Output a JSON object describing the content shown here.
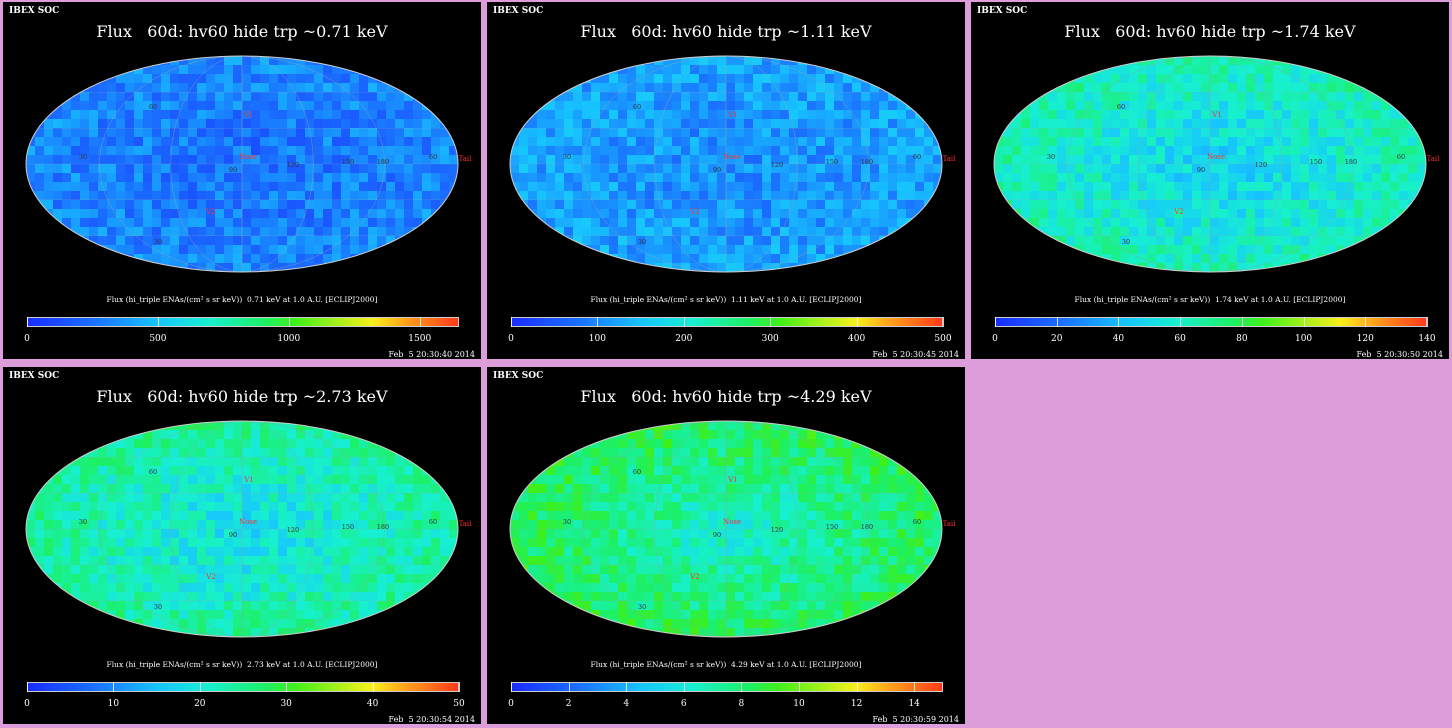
{
  "source_label": "IBEX SOC",
  "panels": [
    {
      "title": "Flux   60d: hv60 hide trp ~0.71 keV",
      "cbar_label": "Flux (hi_triple ENAs/(cm² s sr keV))  0.71 keV at 1.0 A.U. [ECLIPJ2000]",
      "ticks": [
        "0",
        "500",
        "1000",
        "1500"
      ],
      "tick_values": [
        0,
        500,
        1000,
        1500
      ],
      "max": 1650,
      "timestamp": "Feb  5 20:30:40 2014",
      "level": 0.15
    },
    {
      "title": "Flux   60d: hv60 hide trp ~1.11 keV",
      "cbar_label": "Flux (hi_triple ENAs/(cm² s sr keV))  1.11 keV at 1.0 A.U. [ECLIPJ2000]",
      "ticks": [
        "0",
        "100",
        "200",
        "300",
        "400",
        "500"
      ],
      "tick_values": [
        0,
        100,
        200,
        300,
        400,
        500
      ],
      "max": 500,
      "timestamp": "Feb  5 20:30:45 2014",
      "level": 0.2
    },
    {
      "title": "Flux   60d: hv60 hide trp ~1.74 keV",
      "cbar_label": "Flux (hi_triple ENAs/(cm² s sr keV))  1.74 keV at 1.0 A.U. [ECLIPJ2000]",
      "ticks": [
        "0",
        "20",
        "40",
        "60",
        "80",
        "100",
        "120",
        "140"
      ],
      "tick_values": [
        0,
        20,
        40,
        60,
        80,
        100,
        120,
        140
      ],
      "max": 140,
      "timestamp": "Feb  5 20:30:50 2014",
      "level": 0.33
    },
    {
      "title": "Flux   60d: hv60 hide trp ~2.73 keV",
      "cbar_label": "Flux (hi_triple ENAs/(cm² s sr keV))  2.73 keV at 1.0 A.U. [ECLIPJ2000]",
      "ticks": [
        "0",
        "10",
        "20",
        "30",
        "40",
        "50"
      ],
      "tick_values": [
        0,
        10,
        20,
        30,
        40,
        50
      ],
      "max": 50,
      "timestamp": "Feb  5 20:30:54 2014",
      "level": 0.36
    },
    {
      "title": "Flux   60d: hv60 hide trp ~4.29 keV",
      "cbar_label": "Flux (hi_triple ENAs/(cm² s sr keV))  4.29 keV at 1.0 A.U. [ECLIPJ2000]",
      "ticks": [
        "0",
        "2",
        "4",
        "6",
        "8",
        "10",
        "12",
        "14"
      ],
      "tick_values": [
        0,
        2,
        4,
        6,
        8,
        10,
        12,
        14
      ],
      "max": 15,
      "timestamp": "Feb  5 20:30:59 2014",
      "level": 0.43
    }
  ],
  "markers": {
    "v1": "V1",
    "v2": "V2",
    "nose": "Nose",
    "tail": "Tail"
  },
  "grid_labels": [
    "60",
    "30",
    "90",
    "120",
    "150",
    "180",
    "60",
    "30"
  ],
  "colors": {
    "page_bg": "#dd9ddb",
    "panel_bg": "#000000",
    "marker": "#ff3030"
  }
}
